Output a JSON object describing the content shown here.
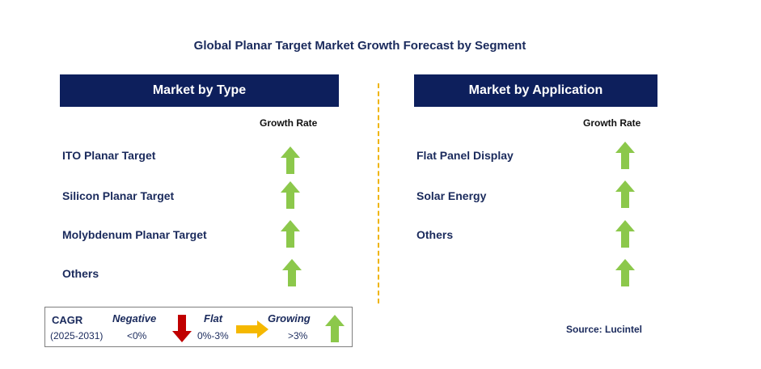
{
  "title": "Global Planar Target Market Growth Forecast by Segment",
  "type_panel": {
    "header": "Market by Type",
    "growth_rate_label": "Growth Rate",
    "items": [
      {
        "label": "ITO Planar Target",
        "trend": "growing"
      },
      {
        "label": "Silicon Planar Target",
        "trend": "growing"
      },
      {
        "label": "Molybdenum Planar Target",
        "trend": "growing"
      },
      {
        "label": "Others",
        "trend": "growing"
      }
    ]
  },
  "application_panel": {
    "header": "Market by Application",
    "growth_rate_label": "Growth Rate",
    "items": [
      {
        "label": "Flat Panel Display",
        "trend": "growing"
      },
      {
        "label": "Solar Energy",
        "trend": "growing"
      },
      {
        "label": "Others",
        "trend": "growing"
      },
      {
        "label": "",
        "trend": "growing"
      }
    ]
  },
  "legend": {
    "cagr_label": "CAGR",
    "period": "(2025-2031)",
    "negative_label": "Negative",
    "negative_range": "<0%",
    "flat_label": "Flat",
    "flat_range": "0%-3%",
    "growing_label": "Growing",
    "growing_range": ">3%"
  },
  "source": "Source: Lucintel",
  "colors": {
    "header_bg": "#0d1f5c",
    "text_navy": "#1a2a5c",
    "growing": "#8cc84b",
    "negative": "#c00000",
    "flat": "#f5b800",
    "divider": "#f0b400"
  },
  "icons": {
    "growing": "up-arrow-icon",
    "negative": "down-arrow-icon",
    "flat": "right-arrow-icon"
  }
}
